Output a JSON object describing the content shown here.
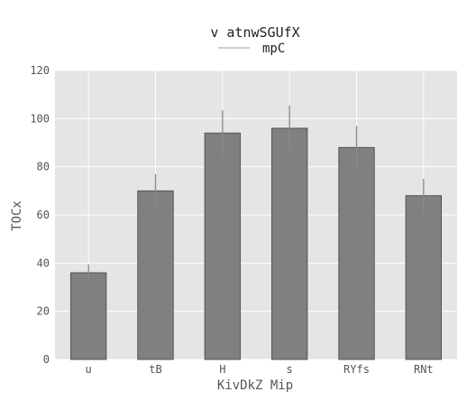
{
  "chart_data": {
    "type": "bar",
    "title": "v atnwSGUfX",
    "xlabel": "KivDkZ Mip",
    "ylabel": "TOCx",
    "legend": {
      "placement": "top-center",
      "entries": [
        "mpC"
      ]
    },
    "grid": true,
    "ylim": [
      0,
      120
    ],
    "yticks": [
      0,
      20,
      40,
      60,
      80,
      100,
      120
    ],
    "categories": [
      "u",
      "tB",
      "H",
      "s",
      "RYfs",
      "RNt"
    ],
    "series": [
      {
        "name": "mpC",
        "values": [
          36,
          70,
          94,
          96,
          88,
          68
        ],
        "errors": [
          3.5,
          7,
          9.5,
          9.5,
          9,
          7
        ]
      }
    ],
    "colors": {
      "background": "#e5e5e5",
      "bar": "#808080",
      "bar_edge": "#555555",
      "grid": "#ffffff",
      "error": "#8a8a8a",
      "legend_line": "#bdbdbd",
      "text": "#555555"
    }
  }
}
